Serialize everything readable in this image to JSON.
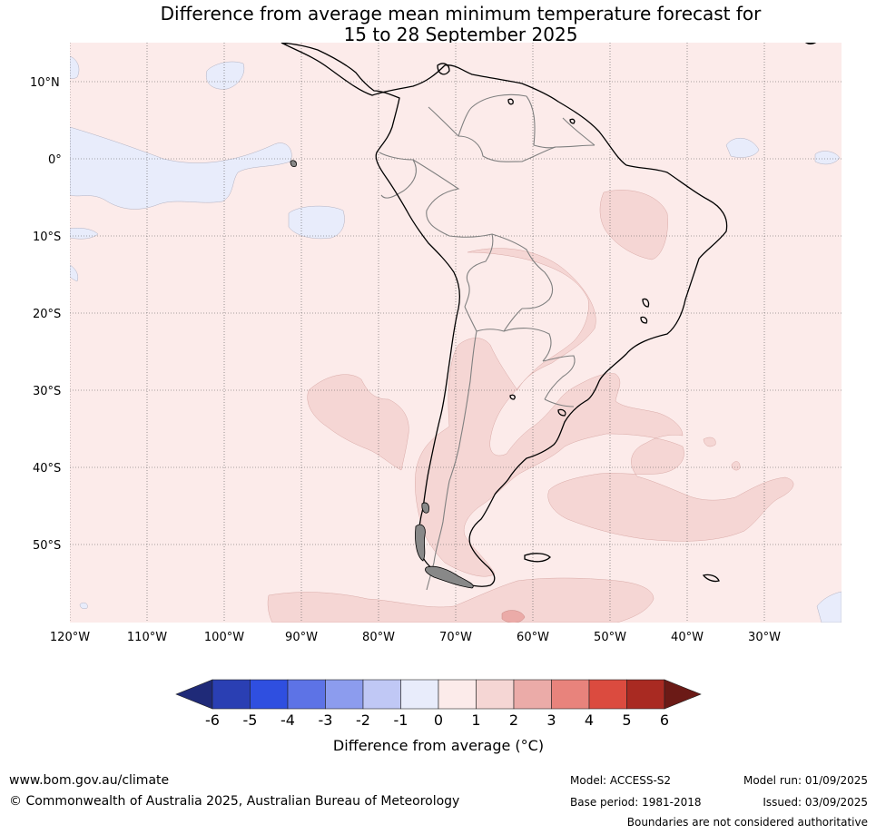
{
  "title": {
    "line1": "Difference from average mean minimum temperature forecast for",
    "line2": "15 to 28 September 2025"
  },
  "map": {
    "lat_labels": [
      "10°N",
      "0°",
      "10°S",
      "20°S",
      "30°S",
      "40°S",
      "50°S"
    ],
    "lon_labels": [
      "120°W",
      "110°W",
      "100°W",
      "90°W",
      "80°W",
      "70°W",
      "60°W",
      "50°W",
      "40°W",
      "30°W"
    ],
    "colors": {
      "background": "#fcebea",
      "warm_1_2": "#f5d6d4",
      "warm_2_3": "#ebaba8",
      "cool_m1_0": "#e8ecfb",
      "land_outline": "#000000",
      "border": "#808080"
    }
  },
  "colorbar": {
    "ticks": [
      "-6",
      "-5",
      "-4",
      "-3",
      "-2",
      "-1",
      "0",
      "1",
      "2",
      "3",
      "4",
      "5",
      "6"
    ],
    "colors": [
      "#1f2a78",
      "#2a3fb3",
      "#2f4fe0",
      "#5d73e6",
      "#8c9cee",
      "#c0c8f5",
      "#e8ecfb",
      "#fcebea",
      "#f5d6d4",
      "#ebaba8",
      "#e8837c",
      "#db4b3f",
      "#a92a22",
      "#6b1a16"
    ],
    "label": "Difference from average (°C)"
  },
  "footer": {
    "website": "www.bom.gov.au/climate",
    "copyright": "© Commonwealth of Australia 2025, Australian Bureau of Meteorology",
    "model": "Model: ACCESS-S2",
    "base_period": "Base period: 1981-2018",
    "model_run": "Model run: 01/09/2025",
    "issued": "Issued: 03/09/2025",
    "boundaries": "Boundaries are not considered authoritative"
  }
}
